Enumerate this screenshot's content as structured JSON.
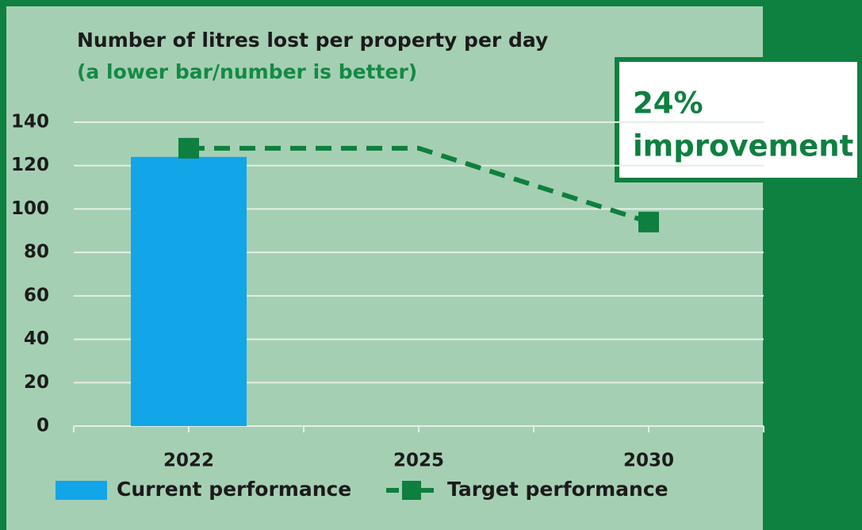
{
  "chart_data": {
    "type": "bar_line",
    "title": "Number of litres lost per property per day",
    "subtitle": "(a lower bar/number is better)",
    "annotation": [
      "24%",
      "improvement"
    ],
    "categories": [
      "2022",
      "2025",
      "2030"
    ],
    "series": [
      {
        "name": "Current performance",
        "type": "bar",
        "color": "#12a5e8",
        "values": [
          124,
          null,
          null
        ]
      },
      {
        "name": "Target performance",
        "type": "line",
        "color": "#0e7f3f",
        "values": [
          128,
          128,
          94
        ]
      }
    ],
    "ylim": [
      0,
      140
    ],
    "yticks": [
      0,
      20,
      40,
      60,
      80,
      100,
      120,
      140
    ],
    "grid": true
  }
}
